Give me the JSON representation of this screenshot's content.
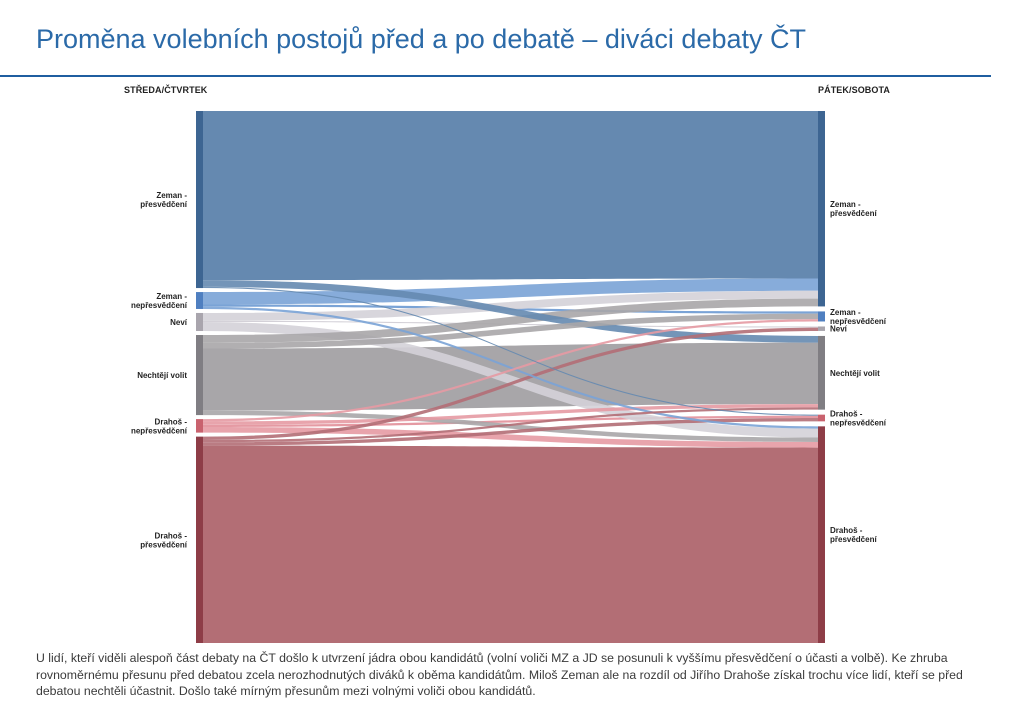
{
  "title": "Proměna volebních postojů před a po debatě – diváci debaty ČT",
  "caption": "U lidí, kteří viděli alespoň část debaty na ČT došlo  k utvrzení jádra obou kandidátů (volní voliči MZ a JD se posunuli k vyššímu přesvědčení o účasti a volbě). Ke zhruba rovnoměrnému přesunu před debatou  zcela  nerozhodnutých diváků k oběma kandidátům. Miloš Zeman ale na rozdíl od Jiřího Drahoše získal trochu více lidí, kteří se před debatou nechtěli účastnit. Došlo také mírným přesunům mezi volnými voliči obou kandidátů.",
  "chart_data": {
    "type": "sankey",
    "left_header": "STŘEDA/ČTVRTEK",
    "right_header": "PÁTEK/SOBOTA",
    "nodes": [
      {
        "id": "zp",
        "label_lines": [
          "Zeman -",
          "přesvědčení"
        ],
        "color": "#6589b0",
        "bar": "#3d6592"
      },
      {
        "id": "zn",
        "label_lines": [
          "Zeman -",
          "nepřesvědčení"
        ],
        "color": "#7aa3d6",
        "bar": "#4f7fc0"
      },
      {
        "id": "nv",
        "label_lines": [
          "Neví"
        ],
        "color": "#d4d1d8",
        "bar": "#a9a5ad"
      },
      {
        "id": "nc",
        "label_lines": [
          "Nechtějí volit"
        ],
        "color": "#a8a6a9",
        "bar": "#807e83"
      },
      {
        "id": "dn",
        "label_lines": [
          "Drahoš -",
          "nepřesvědčení"
        ],
        "color": "#e59aa3",
        "bar": "#c9626e"
      },
      {
        "id": "dp",
        "label_lines": [
          "Drahoš -",
          "přesvědčení"
        ],
        "color": "#b36e75",
        "bar": "#8e3d47"
      }
    ],
    "flows": [
      {
        "from": "zp",
        "to": "zp",
        "value": 150
      },
      {
        "from": "zp",
        "to": "nc",
        "value": 6
      },
      {
        "from": "zp",
        "to": "dn",
        "value": 1
      },
      {
        "from": "zn",
        "to": "zp",
        "value": 11
      },
      {
        "from": "zn",
        "to": "zn",
        "value": 2
      },
      {
        "from": "zn",
        "to": "dp",
        "value": 2
      },
      {
        "from": "nv",
        "to": "zp",
        "value": 7
      },
      {
        "from": "nv",
        "to": "nv",
        "value": 1
      },
      {
        "from": "nv",
        "to": "dp",
        "value": 8
      },
      {
        "from": "nc",
        "to": "zp",
        "value": 7
      },
      {
        "from": "nc",
        "to": "zn",
        "value": 5
      },
      {
        "from": "nc",
        "to": "nc",
        "value": 55
      },
      {
        "from": "nc",
        "to": "dp",
        "value": 4
      },
      {
        "from": "dn",
        "to": "zn",
        "value": 2
      },
      {
        "from": "dn",
        "to": "nc",
        "value": 3
      },
      {
        "from": "dn",
        "to": "dn",
        "value": 2
      },
      {
        "from": "dn",
        "to": "dp",
        "value": 5
      },
      {
        "from": "dp",
        "to": "nv",
        "value": 3
      },
      {
        "from": "dp",
        "to": "nc",
        "value": 2
      },
      {
        "from": "dp",
        "to": "dn",
        "value": 3
      },
      {
        "from": "dp",
        "to": "dp",
        "value": 175
      }
    ]
  }
}
